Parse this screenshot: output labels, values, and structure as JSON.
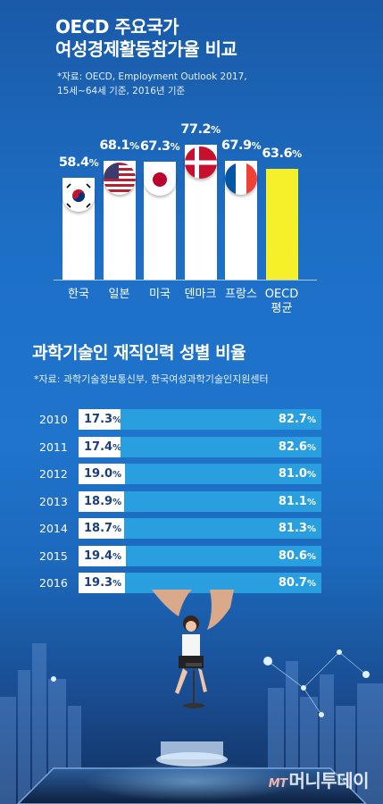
{
  "chart1": {
    "title_line1": "OECD 주요국가",
    "title_line2": "여성경제활동참가율 비교",
    "source_line1": "*자료: OECD, Employment Outlook 2017,",
    "source_line2": "15세~64세 기준, 2016년 기준"
  },
  "chart2": {
    "title": "과학기술인 재직인력 성별 비율",
    "source": "*자료: 과학기술정보통신부, 한국여성과학기술인지원센터"
  },
  "logo": {
    "mt": "MT",
    "text": "머니투데이"
  },
  "chart_data": [
    {
      "type": "bar",
      "title": "OECD 주요국가 여성경제활동참가율 비교",
      "categories": [
        "한국",
        "일본",
        "미국",
        "덴마크",
        "프랑스",
        "OECD 평균"
      ],
      "category_lines": [
        [
          "한국"
        ],
        [
          "일본"
        ],
        [
          "미국"
        ],
        [
          "덴마크"
        ],
        [
          "프랑스"
        ],
        [
          "OECD",
          "평균"
        ]
      ],
      "values": [
        58.4,
        68.1,
        67.3,
        77.2,
        67.9,
        63.6
      ],
      "labels": [
        "58.4",
        "68.1",
        "67.3",
        "77.2",
        "67.9",
        "63.6"
      ],
      "unit": "%",
      "flags": [
        "korea-flag",
        "usa-flag",
        "japan-flag",
        "denmark-flag",
        "france-flag",
        null
      ],
      "colors": {
        "bar": "#ffffff",
        "highlight": "#f6f02a"
      }
    },
    {
      "type": "bar",
      "stacked": true,
      "orientation": "horizontal",
      "title": "과학기술인 재직인력 성별 비율",
      "categories": [
        "2010",
        "2011",
        "2012",
        "2013",
        "2014",
        "2015",
        "2016"
      ],
      "series": [
        {
          "values": [
            17.3,
            17.4,
            19.0,
            18.9,
            18.7,
            19.4,
            19.3
          ],
          "labels": [
            "17.3",
            "17.4",
            "19.0",
            "18.9",
            "18.7",
            "19.4",
            "19.3"
          ],
          "color": "#ffffff"
        },
        {
          "values": [
            82.7,
            82.6,
            81.0,
            81.1,
            81.3,
            80.6,
            80.7
          ],
          "labels": [
            "82.7",
            "82.6",
            "81.0",
            "81.1",
            "81.3",
            "80.6",
            "80.7"
          ],
          "color": "#2a9fe0"
        }
      ],
      "unit": "%"
    }
  ]
}
